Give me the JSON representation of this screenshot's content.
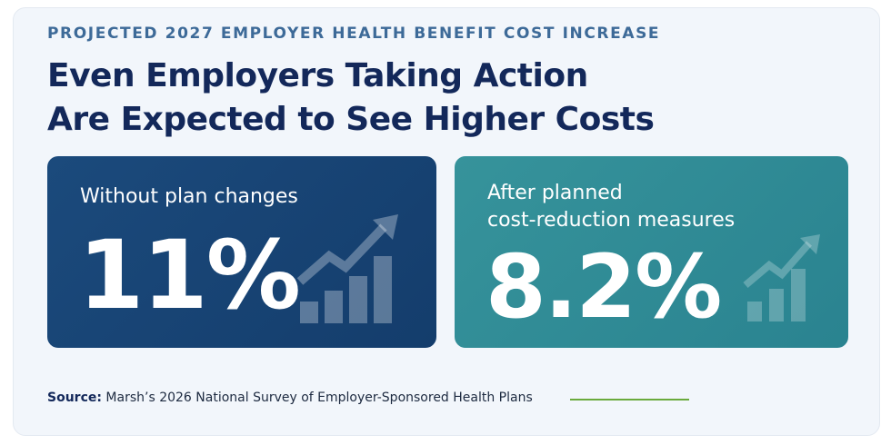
{
  "header": {
    "kicker": "PROJECTED 2027 EMPLOYER HEALTH BENEFIT COST INCREASE",
    "title_lines": [
      "Even Employers Taking Action",
      "Are Expected to See Higher Costs"
    ]
  },
  "cards": [
    {
      "label_lines": [
        "Without plan changes"
      ],
      "value": "11%"
    },
    {
      "label_lines": [
        "After planned",
        "cost-reduction measures"
      ],
      "value": "8.2%"
    }
  ],
  "source": {
    "prefix": "Source:",
    "text": "Marsh’s 2026 National Survey of Employer-Sponsored Health Plans"
  }
}
